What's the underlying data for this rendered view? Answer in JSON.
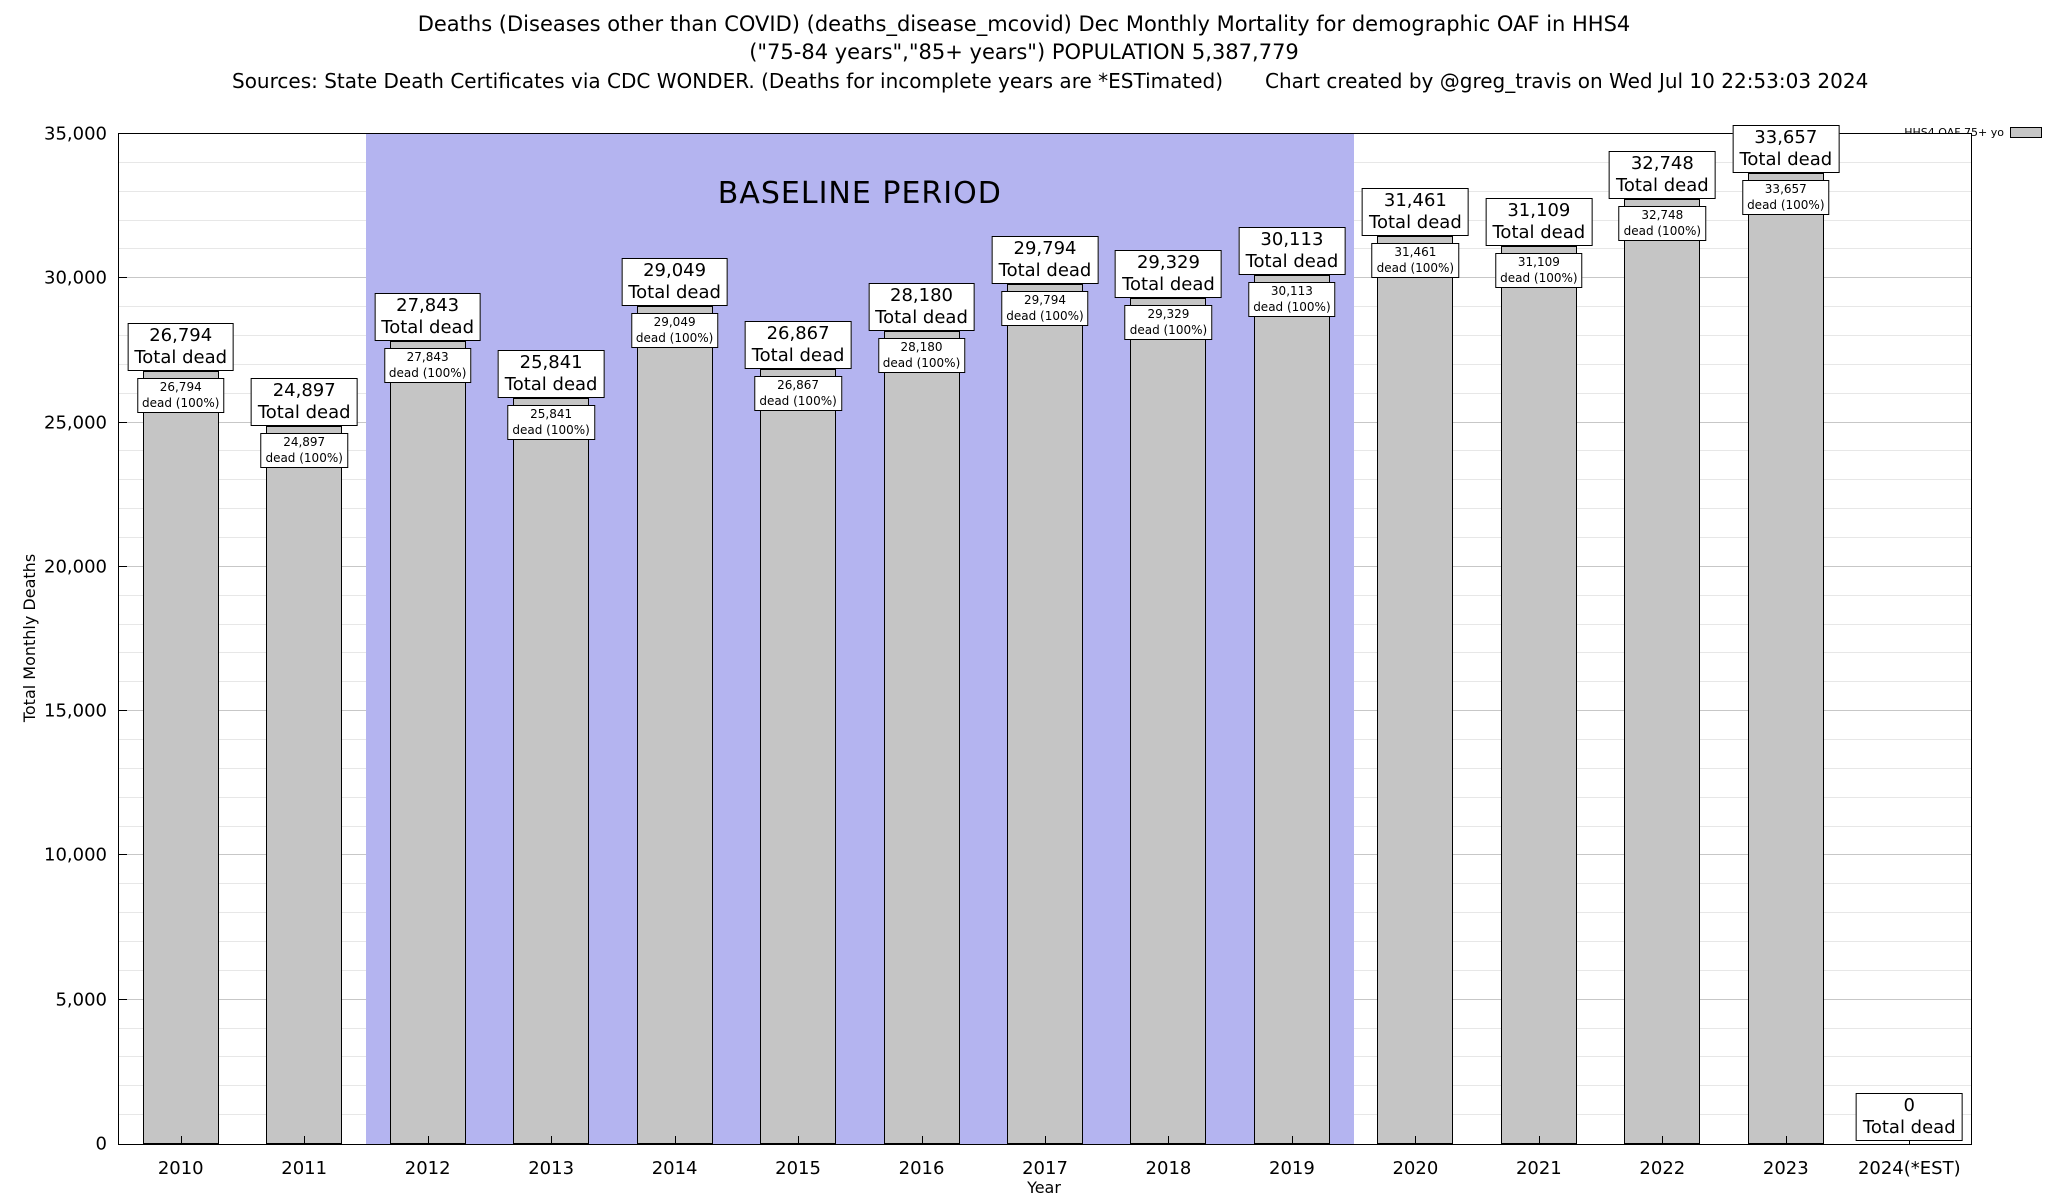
{
  "header": {
    "line1": "Deaths (Diseases other than COVID) (deaths_disease_mcovid) Dec Monthly Mortality for demographic OAF in HHS4",
    "line2": "(\"75-84 years\",\"85+ years\") POPULATION 5,387,779",
    "line3_left": "Sources: State Death Certificates via CDC WONDER. (Deaths for incomplete years are *ESTimated)",
    "line3_right": "Chart created by @greg_travis on Wed Jul 10 22:53:03 2024"
  },
  "chart_data": {
    "type": "bar",
    "title": "Deaths (Diseases other than COVID) (deaths_disease_mcovid) Dec Monthly Mortality for demographic OAF in HHS4",
    "subtitle": "(\"75-84 years\",\"85+ years\") POPULATION 5,387,779",
    "xlabel": "Year",
    "ylabel": "Total Monthly Deaths",
    "ylim": [
      0,
      35000
    ],
    "y_tick_step": 5000,
    "y_minor_step": 1000,
    "grid": true,
    "bar_color": "#c5c5c5",
    "categories": [
      "2010",
      "2011",
      "2012",
      "2013",
      "2014",
      "2015",
      "2016",
      "2017",
      "2018",
      "2019",
      "2020",
      "2021",
      "2022",
      "2023",
      "2024(*EST)"
    ],
    "values": [
      26794,
      24897,
      27843,
      25841,
      29049,
      26867,
      28180,
      29794,
      29329,
      30113,
      31461,
      31109,
      32748,
      33657,
      0
    ],
    "value_labels": [
      "26,794",
      "24,897",
      "27,843",
      "25,841",
      "29,049",
      "26,867",
      "28,180",
      "29,794",
      "29,329",
      "30,113",
      "31,461",
      "31,109",
      "32,748",
      "33,657",
      "0"
    ],
    "bar_top_label_suffix": "Total dead",
    "bar_inner_label_suffix": "dead (100%)",
    "baseline_region": {
      "label": "BASELINE PERIOD",
      "color": "#b4b4f0",
      "from_category": "2012",
      "to_category": "2019",
      "start_index": 2,
      "end_index": 9
    },
    "legend": {
      "label": "HHS4 OAF 75+ yo",
      "position": "top-right-outside"
    },
    "y_ticks": [
      {
        "value": 0,
        "label": "0"
      },
      {
        "value": 5000,
        "label": "5,000"
      },
      {
        "value": 10000,
        "label": "10,000"
      },
      {
        "value": 15000,
        "label": "15,000"
      },
      {
        "value": 20000,
        "label": "20,000"
      },
      {
        "value": 25000,
        "label": "25,000"
      },
      {
        "value": 30000,
        "label": "30,000"
      },
      {
        "value": 35000,
        "label": "35,000"
      }
    ]
  }
}
